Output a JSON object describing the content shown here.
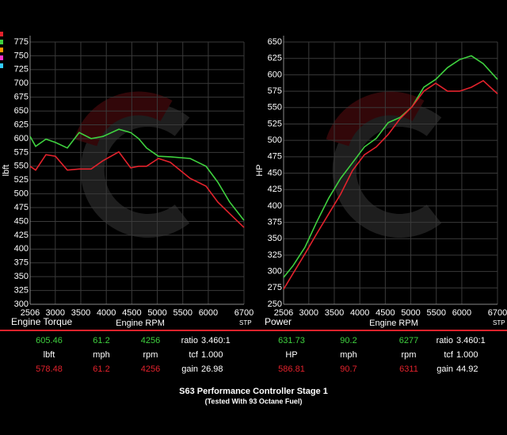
{
  "chart_data": [
    {
      "type": "line",
      "y_label": "lbft",
      "x_label": "Engine RPM",
      "corner_label": "Engine Torque",
      "stp_label": "STP",
      "x": [
        2506,
        2615,
        2817,
        3003,
        3236,
        3469,
        3702,
        3935,
        4246,
        4479,
        4634,
        4789,
        5022,
        5255,
        5644,
        5954,
        6187,
        6420,
        6700
      ],
      "series": [
        {
          "color": "#3fd13f",
          "values": [
            604,
            586,
            599,
            593,
            583,
            611,
            600,
            604,
            617,
            611,
            600,
            583,
            568,
            567,
            564,
            550,
            521,
            485,
            452
          ]
        },
        {
          "color": "#e3222c",
          "values": [
            550,
            543,
            571,
            568,
            543,
            545,
            545,
            560,
            576,
            547,
            550,
            550,
            564,
            557,
            528,
            514,
            485,
            464,
            439
          ]
        }
      ],
      "xlim": [
        2506,
        6700
      ],
      "xticks": [
        2506,
        3000,
        3500,
        4000,
        4500,
        5000,
        5500,
        6000,
        6700
      ],
      "ylim": [
        300,
        775
      ],
      "yticks": [
        300,
        325,
        350,
        375,
        400,
        425,
        450,
        475,
        500,
        525,
        550,
        575,
        600,
        625,
        650,
        675,
        700,
        725,
        750,
        775
      ],
      "grid": true
    },
    {
      "type": "line",
      "y_label": "HP",
      "x_label": "Engine RPM",
      "corner_label": "Power",
      "stp_label": "STP",
      "x": [
        2506,
        2692,
        2925,
        3158,
        3391,
        3624,
        3857,
        4090,
        4323,
        4556,
        4789,
        5022,
        5255,
        5488,
        5721,
        5954,
        6187,
        6420,
        6700
      ],
      "series": [
        {
          "color": "#3fd13f",
          "values": [
            291,
            309,
            337,
            376,
            412,
            442,
            466,
            490,
            503,
            527,
            535,
            551,
            581,
            593,
            611,
            623,
            629,
            617,
            593
          ]
        },
        {
          "color": "#e3222c",
          "values": [
            273,
            297,
            327,
            358,
            388,
            418,
            454,
            478,
            490,
            509,
            533,
            551,
            575,
            587,
            575,
            575,
            581,
            591,
            571
          ]
        }
      ],
      "xlim": [
        2506,
        6700
      ],
      "xticks": [
        2506,
        3000,
        3500,
        4000,
        4500,
        5000,
        5500,
        6000,
        6700
      ],
      "ylim": [
        250,
        650
      ],
      "yticks": [
        250,
        275,
        300,
        325,
        350,
        375,
        400,
        425,
        450,
        475,
        500,
        525,
        550,
        575,
        600,
        625,
        650
      ],
      "grid": true
    }
  ],
  "readouts": [
    {
      "rows": [
        [
          "605.46",
          "61.2",
          "4256",
          "ratio",
          "3.460:1"
        ],
        [
          "lbft",
          "mph",
          "rpm",
          "tcf",
          "1.000"
        ],
        [
          "578.48",
          "61.2",
          "4256",
          "gain",
          "26.98"
        ]
      ]
    },
    {
      "rows": [
        [
          "631.73",
          "90.2",
          "6277",
          "ratio",
          "3.460:1"
        ],
        [
          "HP",
          "mph",
          "rpm",
          "tcf",
          "1.000"
        ],
        [
          "586.81",
          "90.7",
          "6311",
          "gain",
          "44.92"
        ]
      ]
    }
  ],
  "footer": {
    "title": "S63 Performance Controller Stage 1",
    "subtitle": "(Tested With 93 Octane Fuel)"
  }
}
